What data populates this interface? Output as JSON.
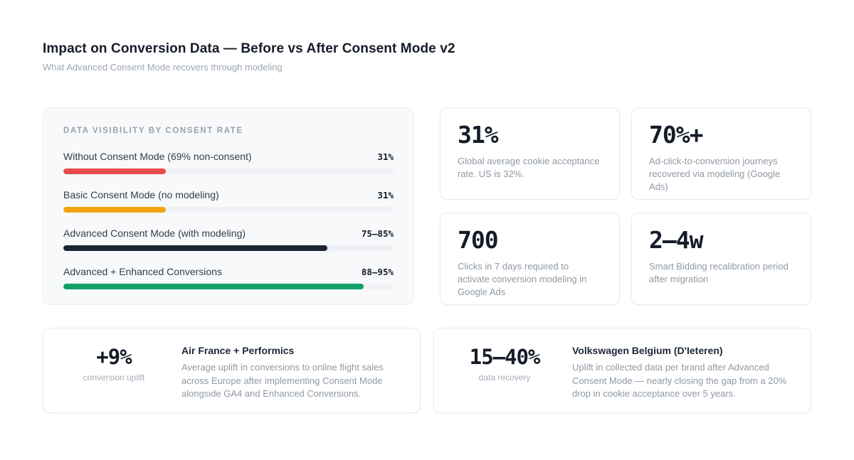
{
  "page": {
    "title": "Impact on Conversion Data — Before vs After Consent Mode v2",
    "subtitle": "What Advanced Consent Mode recovers through modeling"
  },
  "visibility_card": {
    "heading": "DATA VISIBILITY BY CONSENT RATE",
    "track_color": "#f0f1f4",
    "bars": [
      {
        "label": "Without Consent Mode (69% non-consent)",
        "value": "31%",
        "width_pct": 31,
        "color": "#e94b4e"
      },
      {
        "label": "Basic Consent Mode (no modeling)",
        "value": "31%",
        "width_pct": 31,
        "color": "#f3a312"
      },
      {
        "label": "Advanced Consent Mode (with modeling)",
        "value": "75–85%",
        "width_pct": 80,
        "color": "#1b2433"
      },
      {
        "label": "Advanced + Enhanced Conversions",
        "value": "88–95%",
        "width_pct": 91,
        "color": "#10a268"
      }
    ]
  },
  "stat_cards": [
    {
      "value": "31%",
      "desc": "Global average cookie acceptance rate. US is 32%."
    },
    {
      "value": "70%+",
      "desc": "Ad-click-to-conversion journeys recovered via modeling (Google Ads)"
    },
    {
      "value": "700",
      "desc": "Clicks in 7 days required to activate conversion modeling in Google Ads"
    },
    {
      "value": "2–4w",
      "desc": "Smart Bidding recalibration period after migration"
    }
  ],
  "case_cards": [
    {
      "metric": "+9%",
      "caption": "conversion uplift",
      "title": "Air France + Performics",
      "body": "Average uplift in conversions to online flight sales across Europe after implementing Consent Mode alongside GA4 and Enhanced Conversions."
    },
    {
      "metric": "15–40%",
      "caption": "data recovery",
      "title": "Volkswagen Belgium (D'Ieteren)",
      "body": "Uplift in collected data per brand after Advanced Consent Mode — nearly closing the gap from a 20% drop in cookie acceptance over 5 years."
    }
  ],
  "chart_data": {
    "type": "bar",
    "title": "DATA VISIBILITY BY CONSENT RATE",
    "orientation": "horizontal",
    "categories": [
      "Without Consent Mode (69% non-consent)",
      "Basic Consent Mode (no modeling)",
      "Advanced Consent Mode (with modeling)",
      "Advanced + Enhanced Conversions"
    ],
    "values": [
      31,
      31,
      80,
      91
    ],
    "value_labels": [
      "31%",
      "31%",
      "75–85%",
      "88–95%"
    ],
    "bar_colors": [
      "#e94b4e",
      "#f3a312",
      "#1b2433",
      "#10a268"
    ],
    "xlabel": "",
    "ylabel": "",
    "xlim": [
      0,
      100
    ],
    "grid": false,
    "legend": false
  }
}
